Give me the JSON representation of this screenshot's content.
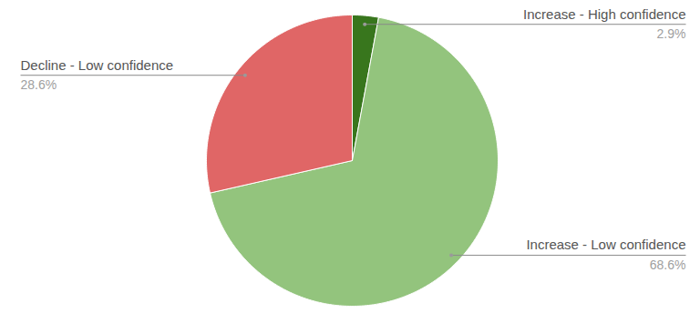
{
  "chart_data": {
    "type": "pie",
    "categories": [
      "Increase - High confidence",
      "Increase - Low confidence",
      "Decline - Low confidence"
    ],
    "values": [
      2.9,
      68.6,
      28.6
    ],
    "value_labels": [
      "2.9%",
      "68.6%",
      "28.6%"
    ],
    "colors": [
      "#38761d",
      "#93c47d",
      "#e06666"
    ],
    "data_labels": true
  }
}
